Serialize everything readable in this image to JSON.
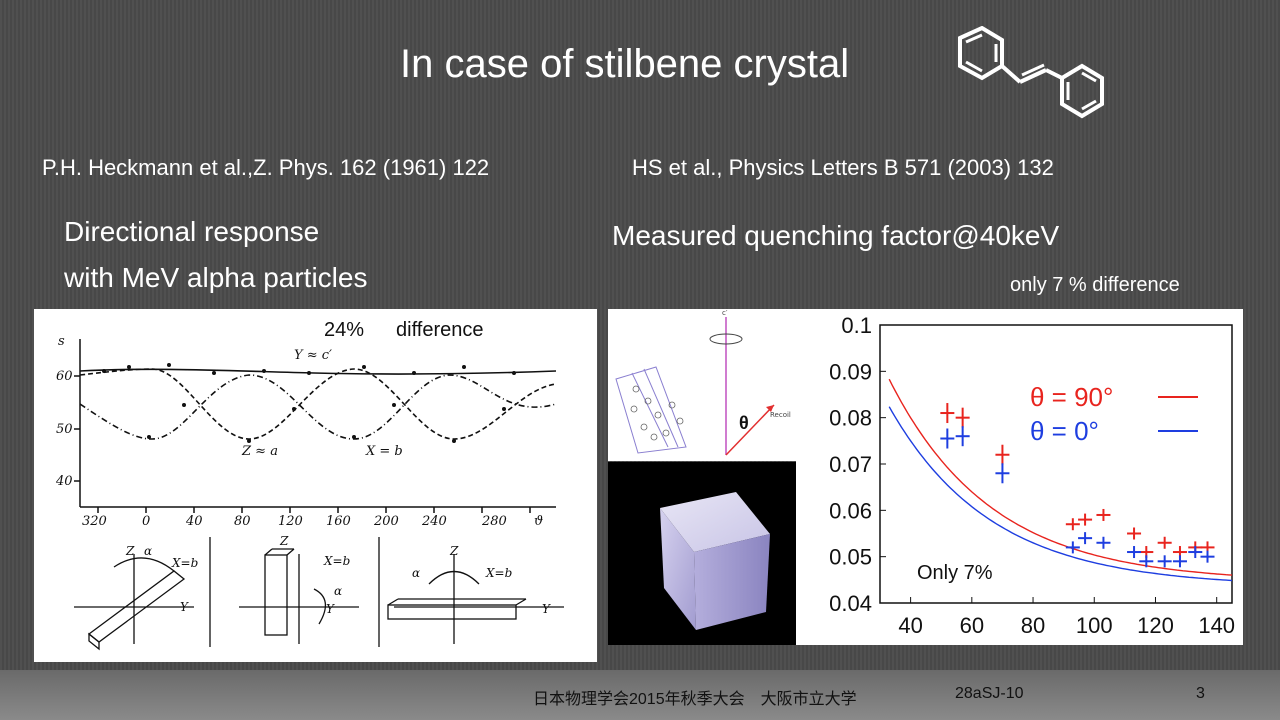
{
  "slide": {
    "title": "In case of stilbene crystal",
    "ref_left": "P.H. Heckmann et al.,Z. Phys. 162 (1961) 122",
    "ref_right": "HS et al., Physics Letters B 571 (2003) 132",
    "left_heading_1": "Directional response",
    "left_heading_2": "with MeV alpha particles",
    "right_heading": "Measured quenching factor@40keV",
    "right_note": "only 7 % difference"
  },
  "left_figure": {
    "diff_pct": "24%",
    "diff_word": "difference",
    "y_symbol": "s",
    "y_ticks": [
      "60",
      "50",
      "40"
    ],
    "x_ticks": [
      "320",
      "0",
      "40",
      "80",
      "120",
      "160",
      "200",
      "240",
      "280"
    ],
    "x_symbol": "ϑ",
    "curve_labels": [
      "Y ≈ c′",
      "Z ≈ a",
      "X = b"
    ],
    "axis_letters": {
      "z": "Z",
      "alpha": "α",
      "xb": "X=b",
      "y": "Y"
    }
  },
  "geometry_figure": {
    "theta": "θ",
    "recoil": "Recoil",
    "c_prime": "c′"
  },
  "chart_data": {
    "type": "scatter",
    "x": [
      40,
      60,
      80,
      100,
      120,
      140
    ],
    "xlim": [
      30,
      145
    ],
    "ylim": [
      0.04,
      0.1
    ],
    "y_ticks": [
      "0.1",
      "0.09",
      "0.08",
      "0.07",
      "0.06",
      "0.05",
      "0.04"
    ],
    "x_ticks": [
      "40",
      "60",
      "80",
      "100",
      "120",
      "140"
    ],
    "series": [
      {
        "name": "θ = 90°",
        "color": "#e8241e",
        "points": [
          [
            52,
            0.081
          ],
          [
            57,
            0.08
          ],
          [
            70,
            0.072
          ],
          [
            93,
            0.057
          ],
          [
            97,
            0.058
          ],
          [
            103,
            0.059
          ],
          [
            113,
            0.055
          ],
          [
            117,
            0.051
          ],
          [
            123,
            0.053
          ],
          [
            128,
            0.051
          ],
          [
            133,
            0.052
          ],
          [
            137,
            0.052
          ]
        ]
      },
      {
        "name": "θ = 0°",
        "color": "#1e3ee0",
        "points": [
          [
            52,
            0.0755
          ],
          [
            57,
            0.076
          ],
          [
            70,
            0.068
          ],
          [
            93,
            0.052
          ],
          [
            97,
            0.054
          ],
          [
            103,
            0.053
          ],
          [
            113,
            0.051
          ],
          [
            117,
            0.049
          ],
          [
            123,
            0.049
          ],
          [
            128,
            0.049
          ],
          [
            133,
            0.051
          ],
          [
            137,
            0.05
          ]
        ]
      }
    ],
    "annotation": "Only 7%",
    "legend_position": "top-right"
  },
  "footer": {
    "conference": "日本物理学会2015年秋季大会　大阪市立大学",
    "session": "28aSJ-10",
    "page": "3"
  }
}
